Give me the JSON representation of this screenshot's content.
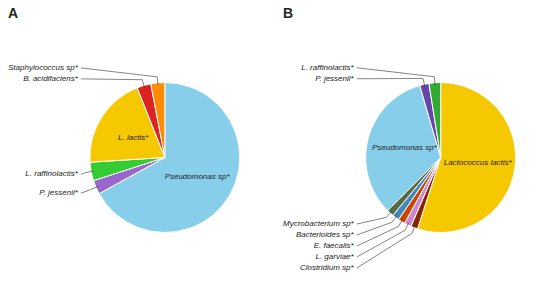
{
  "chart_data": [
    {
      "type": "pie",
      "title": "A",
      "categories": [
        "Pseudomonas sp*",
        "P. jessenii*",
        "L. raffinolactis*",
        "L. lactis*",
        "B. acidifaciens*",
        "Staphylococcus sp*"
      ],
      "values": [
        67,
        3,
        4,
        20,
        3,
        3
      ],
      "colors": [
        "#87CEEB",
        "#9966CC",
        "#33CC33",
        "#F5C800",
        "#DD2222",
        "#FF8C00"
      ]
    },
    {
      "type": "pie",
      "title": "B",
      "categories": [
        "Lactococcus lactis*",
        "Clostridium sp*",
        "L. garviae*",
        "E. faecalis*",
        "Bacterioides sp*",
        "Mycrobacterium sp*",
        "Pseudomonas sp*",
        "P. jessenii*",
        "L. raffinolactis*"
      ],
      "values": [
        55,
        1.5,
        1.5,
        1.5,
        1.5,
        1.5,
        33,
        2,
        2.5
      ],
      "colors": [
        "#F5C800",
        "#8B2500",
        "#CC88CC",
        "#CC4400",
        "#4488BB",
        "#556B44",
        "#87CEEB",
        "#6644AA",
        "#33AA33"
      ]
    }
  ]
}
